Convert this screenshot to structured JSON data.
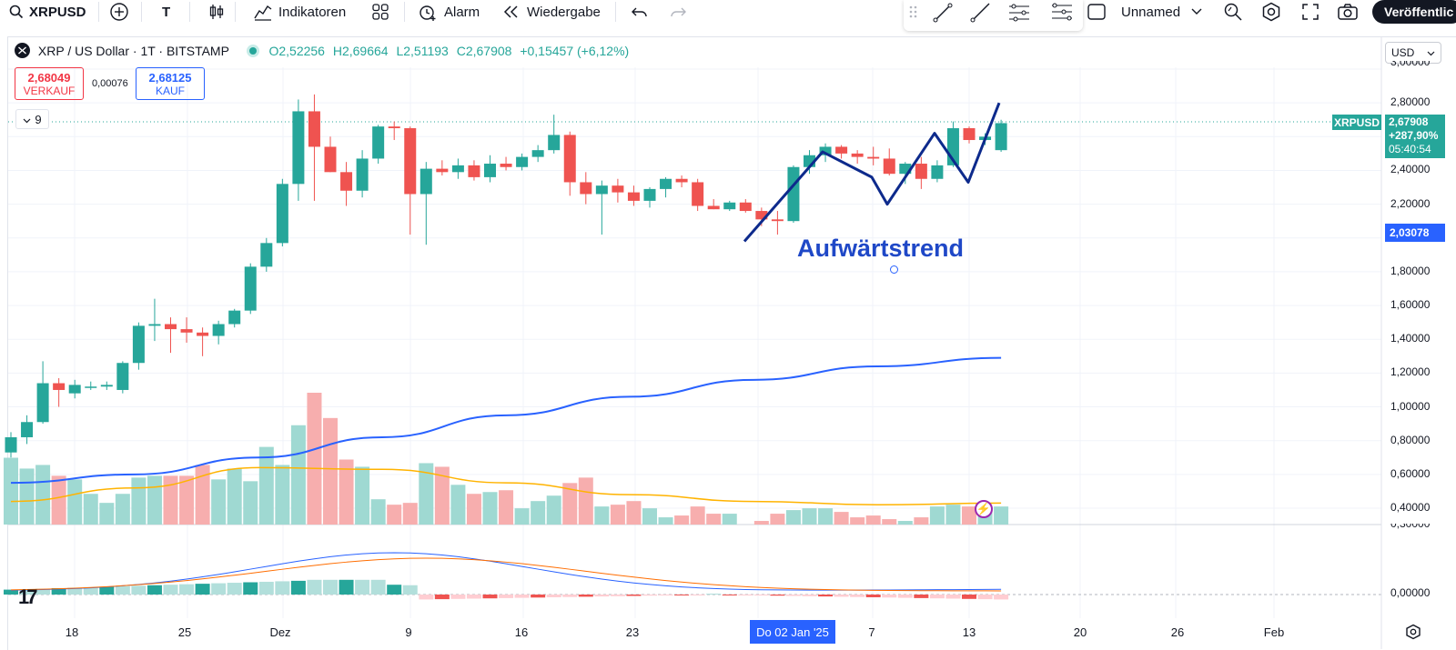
{
  "toolbar": {
    "symbol": "XRPUSD",
    "interval": "T",
    "indicators_label": "Indikatoren",
    "alert_label": "Alarm",
    "replay_label": "Wiedergabe",
    "layout_name": "Unnamed",
    "publish_label": "Veröffentlic"
  },
  "legend": {
    "title": "XRP / US Dollar · 1T · BITSTAMP",
    "open": "O2,52256",
    "high": "H2,69664",
    "low": "L2,51193",
    "close": "C2,67908",
    "change": "+0,15457 (+6,12%)"
  },
  "trade": {
    "sell_price": "2,68049",
    "sell_label": "VERKAUF",
    "spread": "0,00076",
    "buy_price": "2,68125",
    "buy_label": "KAUF"
  },
  "collapsed_indicators": "9",
  "price_axis": {
    "currency": "USD",
    "labels": [
      "3,00000",
      "2,80000",
      "2,40000",
      "2,20000",
      "1,80000",
      "1,60000",
      "1,40000",
      "1,20000",
      "1,00000",
      "0,80000",
      "0,60000",
      "0,40000",
      "0,30000"
    ],
    "last": {
      "symbol": "XRPUSD",
      "price": "2,67908",
      "change_pct": "+287,90%",
      "countdown": "05:40:54"
    },
    "marker_price": "2,03078",
    "macd_zero": "0,00000"
  },
  "time_axis": {
    "labels": [
      "18",
      "25",
      "Dez",
      "9",
      "16",
      "23",
      "7",
      "13",
      "20",
      "26",
      "Feb"
    ],
    "cursor_date": "Do 02 Jan '25"
  },
  "annotation": {
    "text": "Aufwärtstrend"
  },
  "colors": {
    "up": "#26a69a",
    "down": "#ef5350",
    "ma_slow": "#2962ff",
    "ma_fast": "#ffb300",
    "trendline": "#0d2a8c"
  },
  "chart_data": {
    "type": "candlestick",
    "series_name": "XRP / US Dollar",
    "ylim": [
      0.3,
      3.0
    ],
    "ohlc": [
      [
        0.73,
        0.85,
        0.7,
        0.82
      ],
      [
        0.82,
        0.95,
        0.78,
        0.91
      ],
      [
        0.91,
        1.27,
        0.9,
        1.14
      ],
      [
        1.14,
        1.17,
        1.0,
        1.1
      ],
      [
        1.08,
        1.16,
        1.05,
        1.13
      ],
      [
        1.12,
        1.15,
        1.1,
        1.12
      ],
      [
        1.12,
        1.15,
        1.1,
        1.13
      ],
      [
        1.1,
        1.27,
        1.08,
        1.26
      ],
      [
        1.26,
        1.5,
        1.22,
        1.48
      ],
      [
        1.48,
        1.64,
        1.39,
        1.49
      ],
      [
        1.49,
        1.53,
        1.32,
        1.46
      ],
      [
        1.46,
        1.53,
        1.38,
        1.44
      ],
      [
        1.44,
        1.47,
        1.3,
        1.42
      ],
      [
        1.42,
        1.51,
        1.37,
        1.49
      ],
      [
        1.49,
        1.58,
        1.47,
        1.57
      ],
      [
        1.57,
        1.85,
        1.55,
        1.83
      ],
      [
        1.83,
        2.0,
        1.8,
        1.97
      ],
      [
        1.97,
        2.35,
        1.95,
        2.32
      ],
      [
        2.32,
        2.82,
        2.22,
        2.75
      ],
      [
        2.75,
        2.85,
        2.22,
        2.54
      ],
      [
        2.54,
        2.6,
        2.39,
        2.39
      ],
      [
        2.39,
        2.45,
        2.19,
        2.28
      ],
      [
        2.28,
        2.52,
        2.24,
        2.47
      ],
      [
        2.47,
        2.67,
        2.44,
        2.66
      ],
      [
        2.66,
        2.69,
        2.58,
        2.65
      ],
      [
        2.65,
        2.66,
        2.02,
        2.26
      ],
      [
        2.26,
        2.45,
        1.96,
        2.41
      ],
      [
        2.41,
        2.46,
        2.37,
        2.39
      ],
      [
        2.39,
        2.47,
        2.35,
        2.43
      ],
      [
        2.43,
        2.46,
        2.34,
        2.36
      ],
      [
        2.36,
        2.49,
        2.33,
        2.44
      ],
      [
        2.44,
        2.48,
        2.4,
        2.42
      ],
      [
        2.42,
        2.5,
        2.4,
        2.48
      ],
      [
        2.48,
        2.55,
        2.45,
        2.52
      ],
      [
        2.52,
        2.73,
        2.5,
        2.61
      ],
      [
        2.61,
        2.63,
        2.25,
        2.33
      ],
      [
        2.33,
        2.39,
        2.2,
        2.26
      ],
      [
        2.26,
        2.34,
        2.02,
        2.31
      ],
      [
        2.31,
        2.35,
        2.21,
        2.27
      ],
      [
        2.27,
        2.31,
        2.19,
        2.22
      ],
      [
        2.22,
        2.3,
        2.18,
        2.29
      ],
      [
        2.29,
        2.36,
        2.24,
        2.35
      ],
      [
        2.35,
        2.37,
        2.3,
        2.33
      ],
      [
        2.33,
        2.35,
        2.16,
        2.19
      ],
      [
        2.19,
        2.23,
        2.17,
        2.17
      ],
      [
        2.17,
        2.22,
        2.16,
        2.21
      ],
      [
        2.21,
        2.23,
        2.15,
        2.16
      ],
      [
        2.16,
        2.18,
        2.07,
        2.11
      ],
      [
        2.11,
        2.16,
        2.02,
        2.1
      ],
      [
        2.1,
        2.43,
        2.09,
        2.42
      ],
      [
        2.42,
        2.52,
        2.38,
        2.49
      ],
      [
        2.49,
        2.56,
        2.45,
        2.54
      ],
      [
        2.54,
        2.55,
        2.47,
        2.5
      ],
      [
        2.5,
        2.52,
        2.44,
        2.48
      ],
      [
        2.48,
        2.54,
        2.43,
        2.47
      ],
      [
        2.47,
        2.53,
        2.37,
        2.38
      ],
      [
        2.38,
        2.45,
        2.32,
        2.44
      ],
      [
        2.44,
        2.48,
        2.29,
        2.35
      ],
      [
        2.35,
        2.46,
        2.33,
        2.43
      ],
      [
        2.43,
        2.69,
        2.42,
        2.65
      ],
      [
        2.65,
        2.66,
        2.56,
        2.58
      ],
      [
        2.58,
        2.62,
        2.55,
        2.6
      ],
      [
        2.52,
        2.7,
        2.51,
        2.68
      ]
    ],
    "volume": [
      0.67,
      0.61,
      0.63,
      0.57,
      0.55,
      0.47,
      0.42,
      0.47,
      0.56,
      0.57,
      0.57,
      0.57,
      0.63,
      0.55,
      0.61,
      0.54,
      0.73,
      0.63,
      0.85,
      1.03,
      0.89,
      0.66,
      0.62,
      0.44,
      0.41,
      0.42,
      0.64,
      0.62,
      0.52,
      0.47,
      0.48,
      0.49,
      0.39,
      0.43,
      0.46,
      0.53,
      0.56,
      0.4,
      0.41,
      0.43,
      0.39,
      0.34,
      0.35,
      0.4,
      0.36,
      0.36,
      0.3,
      0.32,
      0.36,
      0.38,
      0.39,
      0.39,
      0.37,
      0.34,
      0.35,
      0.33,
      0.32,
      0.34,
      0.4,
      0.41,
      0.4,
      0.4,
      0.4
    ],
    "ma_slow": [
      0.55,
      0.6,
      0.7,
      0.82,
      0.95,
      1.06,
      1.16,
      1.24,
      1.29
    ],
    "ma_fast": [
      0.44,
      0.52,
      0.64,
      0.63,
      0.55,
      0.48,
      0.44,
      0.42,
      0.43
    ],
    "trendline_points": [
      [
        2.01,
        1.98
      ],
      [
        2.01,
        2.5
      ],
      [
        2.42,
        2.2
      ],
      [
        2.42,
        2.62
      ],
      [
        2.36,
        2.75
      ]
    ]
  }
}
